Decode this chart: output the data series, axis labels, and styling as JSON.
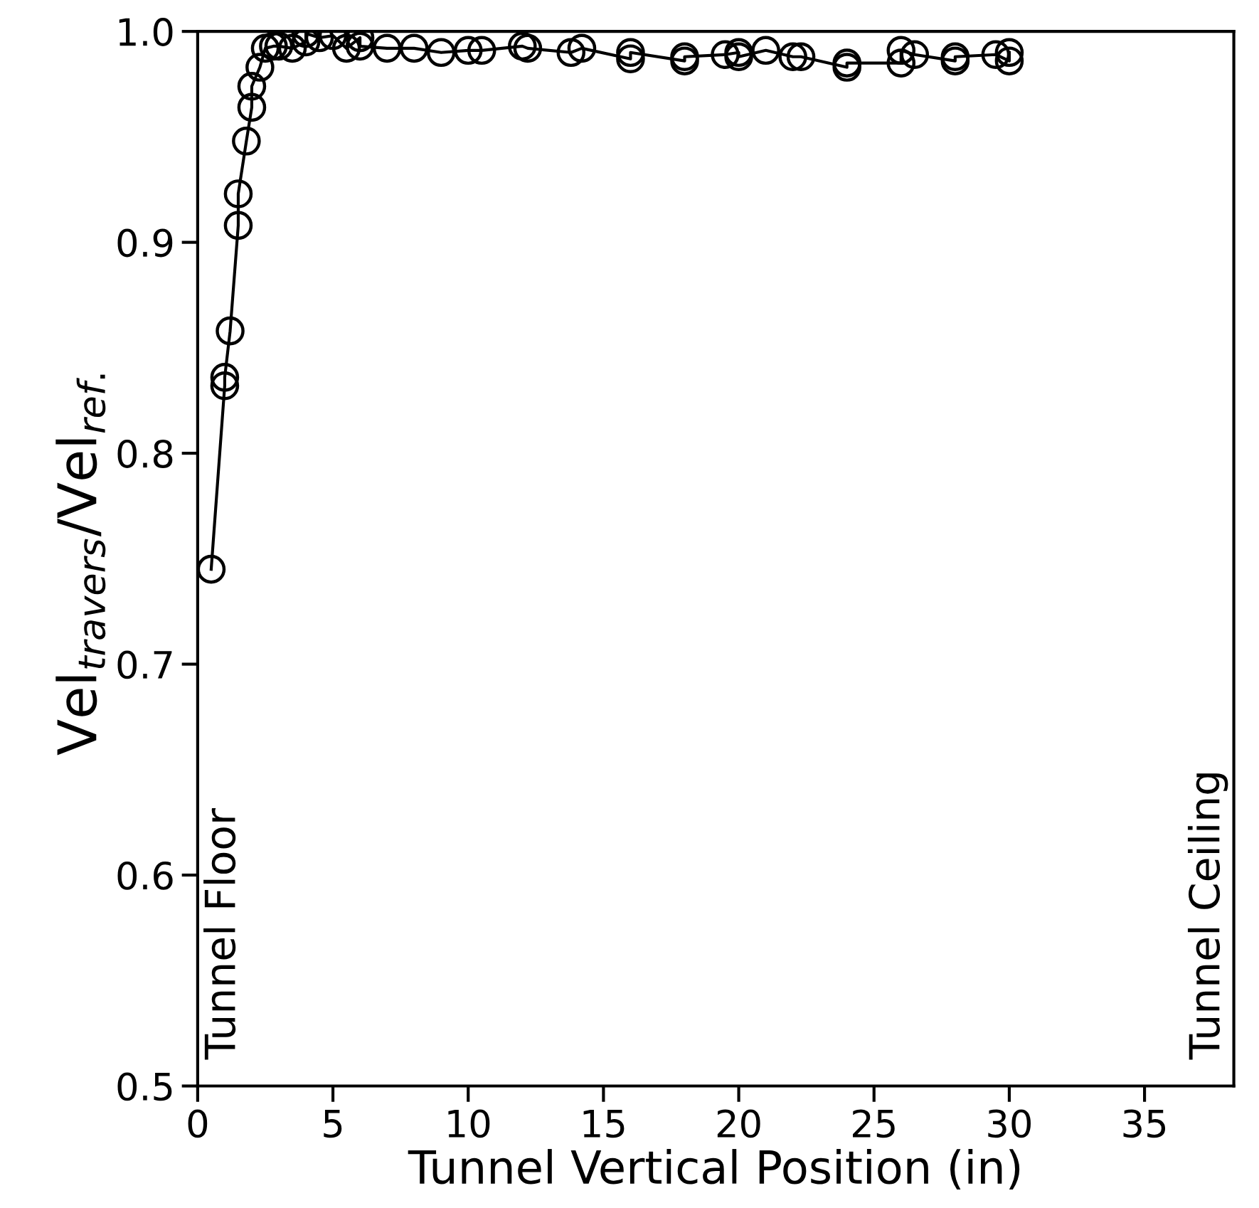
{
  "chart_data": {
    "type": "line",
    "xlabel": "Tunnel Vertical Position (in)",
    "ylabel": "Vel$_{travers}$/Vel$_{ref.}$",
    "xlim": [
      0,
      38.3
    ],
    "ylim": [
      0.5,
      1.0
    ],
    "xticks": [
      0,
      5,
      10,
      15,
      20,
      25,
      30,
      35
    ],
    "yticks": [
      0.5,
      0.6,
      0.7,
      0.8,
      0.9,
      {
        "value": 1.0,
        "label": "1.0"
      }
    ],
    "marker": "circle",
    "line_style": "solid",
    "grid": false,
    "legend": false,
    "annotations": [
      "Tunnel Floor",
      "Tunnel Ceiling"
    ],
    "series": [
      {
        "color": "#000000",
        "x": [
          0.5,
          1.0,
          1.0,
          1.2,
          1.5,
          1.5,
          1.8,
          2.0,
          2.0,
          2.3,
          2.5,
          2.8,
          3,
          3.5,
          4,
          4,
          4.5,
          5,
          5.5,
          6,
          6,
          7,
          8,
          9,
          10,
          10.5,
          12,
          12.2,
          13.8,
          14.2,
          16,
          16,
          18,
          18,
          19.5,
          20,
          20,
          21,
          22,
          22.3,
          24,
          24,
          26,
          26,
          26.5,
          28,
          28,
          29.5,
          30,
          30
        ],
        "values": [
          0.745,
          0.832,
          0.836,
          0.858,
          0.908,
          0.923,
          0.948,
          0.964,
          0.974,
          0.983,
          0.992,
          0.993,
          0.993,
          0.992,
          0.995,
          0.999,
          0.997,
          0.998,
          0.992,
          0.997,
          0.993,
          0.992,
          0.992,
          0.99,
          0.991,
          0.991,
          0.993,
          0.992,
          0.99,
          0.992,
          0.987,
          0.99,
          0.986,
          0.988,
          0.989,
          0.99,
          0.988,
          0.991,
          0.988,
          0.988,
          0.983,
          0.985,
          0.985,
          0.991,
          0.989,
          0.986,
          0.988,
          0.989,
          0.986,
          0.99
        ]
      }
    ]
  }
}
